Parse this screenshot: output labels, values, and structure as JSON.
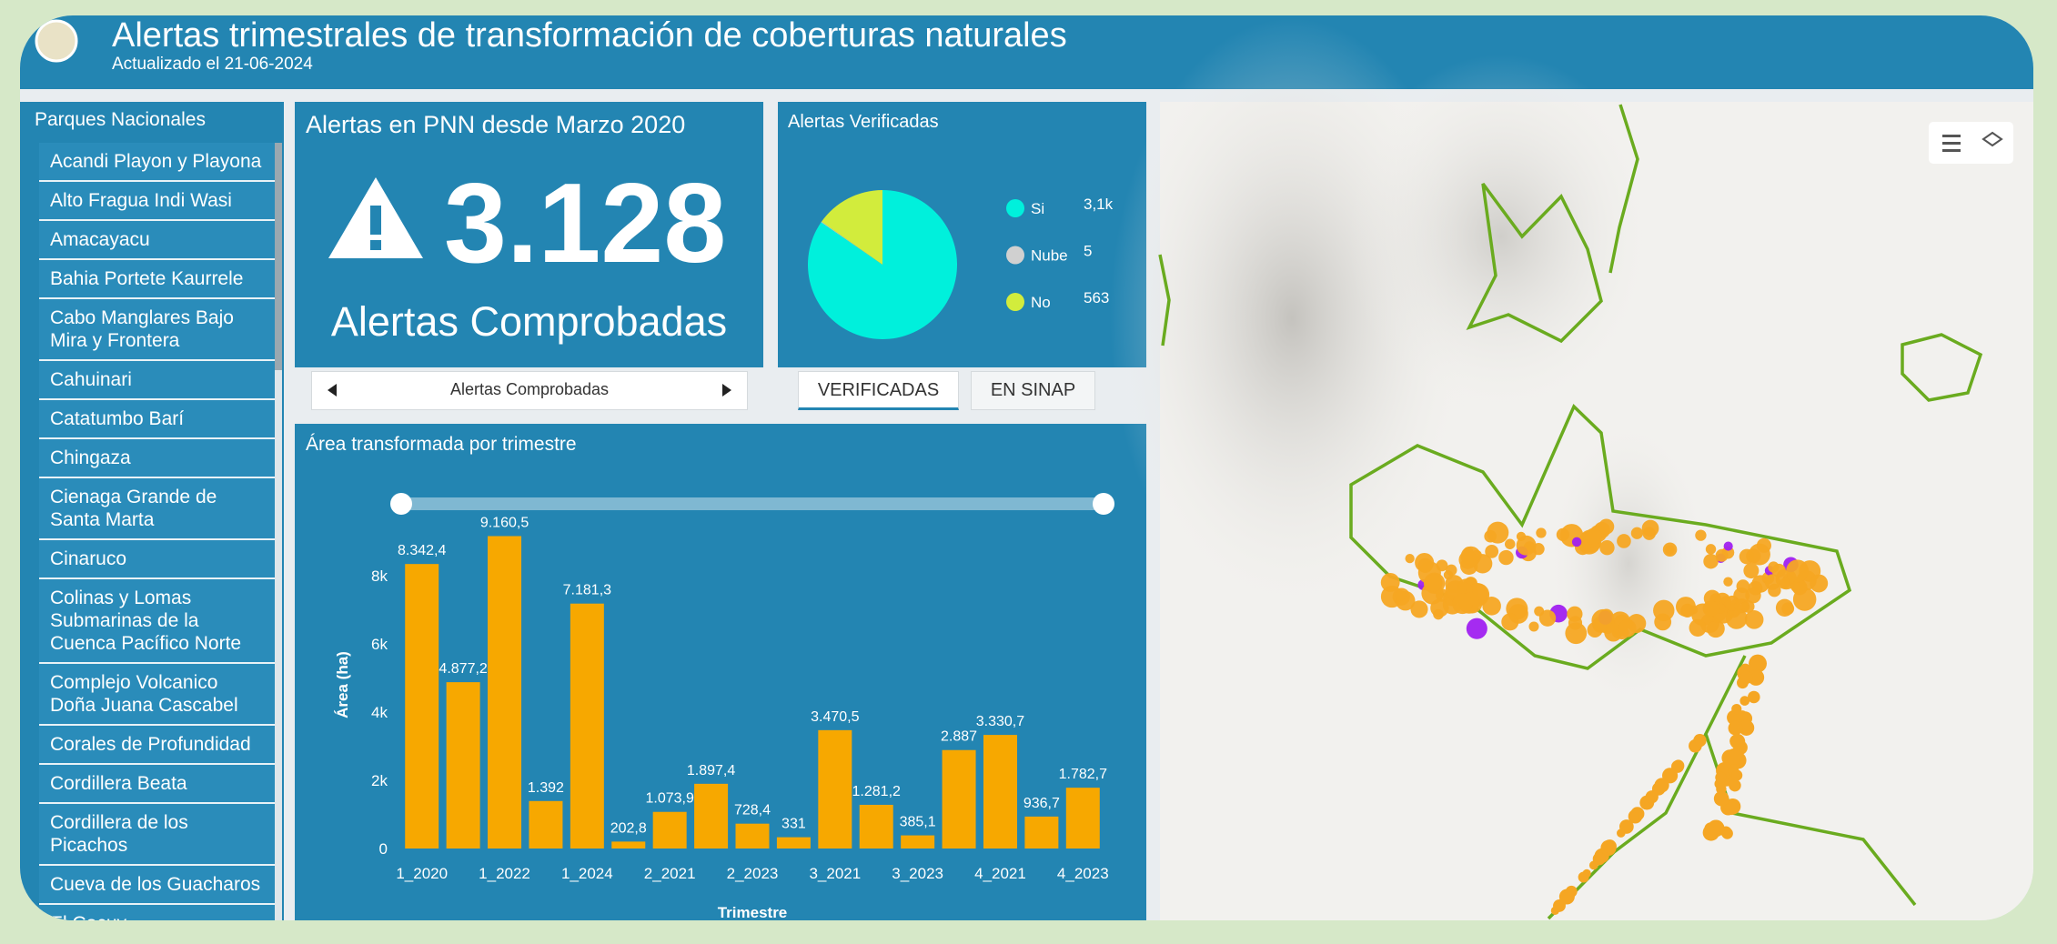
{
  "header": {
    "title": "Alertas trimestrales de transformación de coberturas naturales",
    "subtitle": "Actualizado el 21-06-2024"
  },
  "sidebar": {
    "title": "Parques Nacionales",
    "items": [
      "Acandi Playon y Playona",
      "Alto Fragua Indi Wasi",
      "Amacayacu",
      "Bahia Portete Kaurrele",
      "Cabo Manglares Bajo Mira y Frontera",
      "Cahuinari",
      "Catatumbo Barí",
      "Chingaza",
      "Cienaga Grande de Santa Marta",
      "Cinaruco",
      "Colinas y Lomas Submarinas de la Cuenca Pacífico Norte",
      "Complejo Volcanico Doña Juana Cascabel",
      "Corales de Profundidad",
      "Cordillera Beata",
      "Cordillera de los Picachos",
      "Cueva de los Guacharos",
      "El Cocuy"
    ]
  },
  "kpi": {
    "title": "Alertas en PNN desde Marzo 2020",
    "value": "3.128",
    "label": "Alertas Comprobadas"
  },
  "nav": {
    "selector": "Alertas Comprobadas",
    "tabs": [
      "VERIFICADAS",
      "EN SINAP"
    ]
  },
  "chart_data": [
    {
      "type": "pie",
      "title": "Alertas Verificadas",
      "categories": [
        "Si",
        "Nube",
        "No"
      ],
      "values": [
        3128,
        5,
        563
      ],
      "value_labels": [
        "3,1k",
        "5",
        "563"
      ],
      "colors": [
        "#00f0dc",
        "#d0d0d0",
        "#d2ec3c"
      ]
    },
    {
      "type": "bar",
      "title": "Área transformada por trimestre",
      "xlabel": "Trimestre",
      "ylabel": "Área (ha)",
      "categories": [
        "1_2020",
        null,
        "1_2022",
        null,
        "1_2024",
        null,
        "2_2021",
        null,
        "2_2023",
        null,
        "3_2021",
        null,
        "3_2023",
        null,
        "4_2021",
        null,
        "4_2023"
      ],
      "values": [
        8342.4,
        4877.2,
        9160.5,
        1392,
        7181.3,
        202.8,
        1073.9,
        1897.4,
        728.4,
        331,
        3470.5,
        1281.2,
        385.1,
        2887,
        3330.7,
        936.7,
        1782.7
      ],
      "value_labels": [
        "8.342,4",
        "4.877,2",
        "9.160,5",
        "1.392",
        "7.181,3",
        "202,8",
        "1.073,9",
        "1.897,4",
        "728,4",
        "331",
        "3.470,5",
        "1.281,2",
        "385,1",
        "2.887",
        "3.330,7",
        "936,7",
        "1.782,7"
      ],
      "color": "#f7a800",
      "ylim": [
        0,
        9600
      ],
      "yticks": [
        0,
        {
          "value": 2000,
          "label": "2k"
        },
        {
          "value": 4000,
          "label": "4k"
        },
        {
          "value": 6000,
          "label": "6k"
        },
        {
          "value": 8000,
          "label": "8k"
        }
      ],
      "grid": false
    }
  ]
}
